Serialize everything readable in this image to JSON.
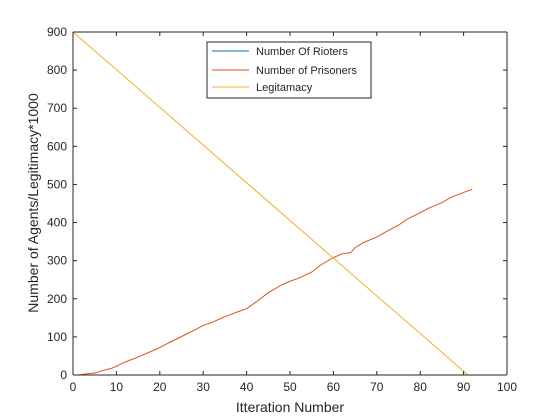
{
  "chart_data": {
    "type": "line",
    "title": "",
    "xlabel": "Itteration Number",
    "ylabel": "Number of Agents/Legitimacy*1000",
    "xlim": [
      0,
      100
    ],
    "ylim": [
      0,
      900
    ],
    "xticks": [
      0,
      10,
      20,
      30,
      40,
      50,
      60,
      70,
      80,
      90,
      100
    ],
    "yticks": [
      0,
      100,
      200,
      300,
      400,
      500,
      600,
      700,
      800,
      900
    ],
    "grid": false,
    "legend_position": "top-center",
    "series": [
      {
        "name": "Number Of Rioters",
        "color": "#0072BD",
        "x": [
          1,
          92
        ],
        "y": [
          0,
          0
        ]
      },
      {
        "name": "Number of Prisoners",
        "color": "#D95319",
        "x": [
          1,
          2,
          3,
          5,
          7,
          9,
          10,
          12,
          15,
          18,
          20,
          22,
          25,
          28,
          30,
          32,
          35,
          38,
          40,
          42,
          45,
          48,
          50,
          52,
          55,
          57,
          60,
          62,
          64,
          65,
          67,
          70,
          72,
          75,
          77,
          80,
          82,
          85,
          87,
          90,
          92
        ],
        "y": [
          0,
          1,
          3,
          5,
          12,
          18,
          23,
          34,
          47,
          62,
          72,
          84,
          101,
          118,
          130,
          138,
          153,
          166,
          174,
          190,
          216,
          236,
          246,
          254,
          270,
          288,
          308,
          318,
          321,
          334,
          348,
          362,
          375,
          393,
          409,
          426,
          438,
          452,
          466,
          479,
          487
        ]
      },
      {
        "name": "Legitamacy",
        "color": "#EDB120",
        "x": [
          0,
          91
        ],
        "y": [
          900,
          0
        ]
      }
    ]
  }
}
